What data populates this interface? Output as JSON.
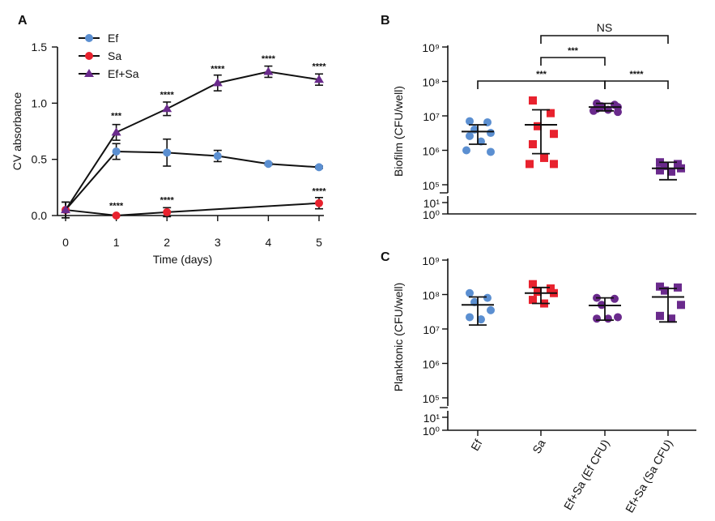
{
  "colors": {
    "ef": "#5b8fd1",
    "sa": "#e8222e",
    "efsa": "#6a2a8c",
    "line": "#111111"
  },
  "chart_data": [
    {
      "panel": "A",
      "type": "line",
      "xlabel": "Time (days)",
      "ylabel": "CV absorbance",
      "x": [
        0,
        1,
        2,
        3,
        4,
        5
      ],
      "xlim": [
        0,
        5
      ],
      "ylim": [
        0,
        1.5
      ],
      "yticks": [
        "0.0",
        "0.5",
        "1.0",
        "1.5"
      ],
      "legend_position": "top-left",
      "series": [
        {
          "name": "Ef",
          "marker": "circle",
          "color": "#5b8fd1",
          "x": [
            0,
            1,
            2,
            3,
            4,
            5
          ],
          "y": [
            0.05,
            0.57,
            0.56,
            0.53,
            0.46,
            0.43
          ],
          "err": [
            0.07,
            0.07,
            0.12,
            0.05,
            0.01,
            0.01
          ]
        },
        {
          "name": "Sa",
          "marker": "circle",
          "color": "#e8222e",
          "x": [
            0,
            1,
            2,
            5
          ],
          "y": [
            0.05,
            0.0,
            0.03,
            0.11
          ],
          "err": [
            0.07,
            0.0,
            0.04,
            0.05
          ]
        },
        {
          "name": "Ef+Sa",
          "marker": "triangle",
          "color": "#6a2a8c",
          "x": [
            0,
            1,
            2,
            3,
            4,
            5
          ],
          "y": [
            0.05,
            0.74,
            0.95,
            1.18,
            1.28,
            1.21
          ],
          "err": [
            0.07,
            0.07,
            0.06,
            0.07,
            0.05,
            0.05
          ]
        }
      ],
      "annotations": [
        {
          "x": 1,
          "y": 0.86,
          "text": "***"
        },
        {
          "x": 2,
          "y": 1.05,
          "text": "****"
        },
        {
          "x": 3,
          "y": 1.28,
          "text": "****"
        },
        {
          "x": 4,
          "y": 1.37,
          "text": "****"
        },
        {
          "x": 5,
          "y": 1.3,
          "text": "****"
        },
        {
          "x": 1,
          "y": 0.06,
          "text": "****"
        },
        {
          "x": 2,
          "y": 0.11,
          "text": "****"
        },
        {
          "x": 5,
          "y": 0.19,
          "text": "****"
        }
      ]
    },
    {
      "panel": "B",
      "type": "scatter",
      "ylabel": "Biofilm (CFU/well)",
      "yscale": "log",
      "ytick_labels": [
        "10⁰",
        "10¹",
        "10⁵",
        "10⁶",
        "10⁷",
        "10⁸",
        "10⁹"
      ],
      "groups": [
        {
          "name": "Ef",
          "color": "#5b8fd1",
          "marker": "circle",
          "mean": 3500000.0,
          "lo": 1500000.0,
          "hi": 5500000.0,
          "points": [
            7000000.0,
            6500000.0,
            4000000.0,
            3200000.0,
            2600000.0,
            1800000.0,
            1000000.0,
            900000.0
          ]
        },
        {
          "name": "Sa",
          "color": "#e8222e",
          "marker": "square",
          "mean": 5500000.0,
          "lo": 800000.0,
          "hi": 15000000.0,
          "points": [
            28000000.0,
            12000000.0,
            5000000.0,
            3000000.0,
            1500000.0,
            600000.0,
            400000.0,
            400000.0
          ]
        },
        {
          "name": "Ef+Sa (Ef CFU)",
          "color": "#6a2a8c",
          "marker": "circle",
          "mean": 18000000.0,
          "lo": 14000000.0,
          "hi": 23000000.0,
          "points": [
            23000000.0,
            21000000.0,
            19000000.0,
            18000000.0,
            16000000.0,
            15000000.0,
            14000000.0,
            13000000.0
          ]
        },
        {
          "name": "Ef+Sa (Sa CFU)",
          "color": "#6a2a8c",
          "marker": "square",
          "mean": 300000.0,
          "lo": 140000.0,
          "hi": 450000.0,
          "points": [
            450000.0,
            400000.0,
            350000.0,
            300000.0,
            260000.0,
            240000.0
          ]
        }
      ],
      "brackets": [
        {
          "from": 2,
          "to": 4,
          "text": "NS",
          "level": 3
        },
        {
          "from": 2,
          "to": 3,
          "text": "***",
          "level": 2
        },
        {
          "from": 1,
          "to": 3,
          "text": "***",
          "level": 1
        },
        {
          "from": 3,
          "to": 4,
          "text": "****",
          "level": 0
        }
      ]
    },
    {
      "panel": "C",
      "type": "scatter",
      "ylabel": "Planktonic (CFU/well)",
      "yscale": "log",
      "ytick_labels": [
        "10⁰",
        "10¹",
        "10⁵",
        "10⁶",
        "10⁷",
        "10⁸",
        "10⁹"
      ],
      "categories": [
        "Ef",
        "Sa",
        "Ef+Sa (Ef CFU)",
        "Ef+Sa (Sa CFU)"
      ],
      "groups": [
        {
          "name": "Ef",
          "color": "#5b8fd1",
          "marker": "circle",
          "mean": 50000000.0,
          "lo": 13000000.0,
          "hi": 85000000.0,
          "points": [
            110000000.0,
            80000000.0,
            60000000.0,
            35000000.0,
            22000000.0,
            19000000.0
          ]
        },
        {
          "name": "Sa",
          "color": "#e8222e",
          "marker": "square",
          "mean": 110000000.0,
          "lo": 55000000.0,
          "hi": 160000000.0,
          "points": [
            200000000.0,
            150000000.0,
            120000000.0,
            110000000.0,
            70000000.0,
            55000000.0
          ]
        },
        {
          "name": "Ef+Sa (Ef CFU)",
          "color": "#6a2a8c",
          "marker": "circle",
          "mean": 48000000.0,
          "lo": 18000000.0,
          "hi": 80000000.0,
          "points": [
            80000000.0,
            75000000.0,
            50000000.0,
            22000000.0,
            20000000.0,
            20000000.0
          ]
        },
        {
          "name": "Ef+Sa (Sa CFU)",
          "color": "#6a2a8c",
          "marker": "square",
          "mean": 85000000.0,
          "lo": 16000000.0,
          "hi": 150000000.0,
          "points": [
            170000000.0,
            160000000.0,
            130000000.0,
            50000000.0,
            24000000.0,
            20000000.0
          ]
        }
      ]
    }
  ]
}
